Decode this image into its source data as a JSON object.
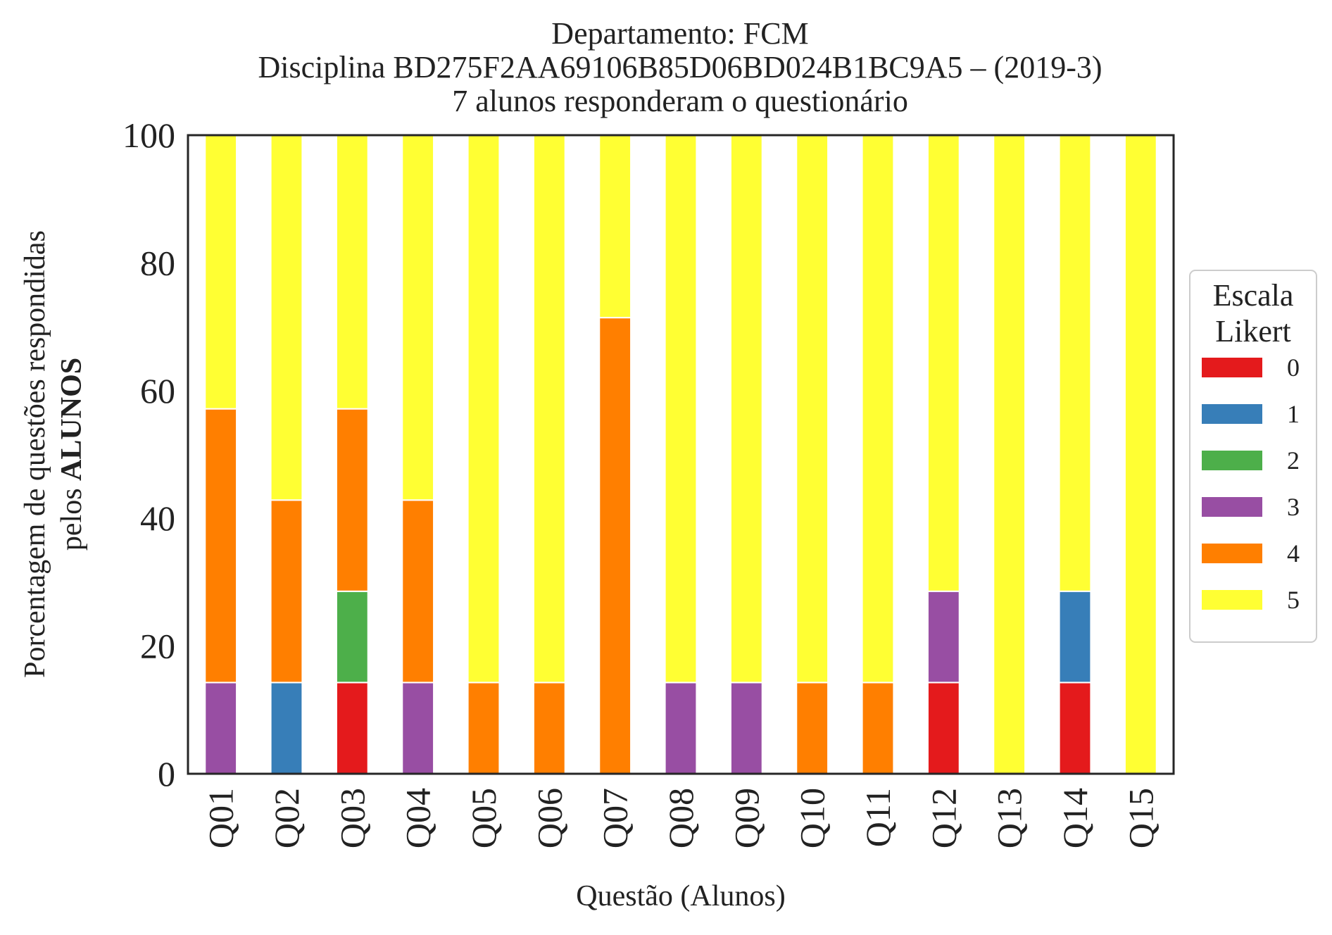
{
  "chart_data": {
    "type": "bar",
    "stacked": true,
    "title": [
      "Departamento: FCM",
      "Disciplina BD275F2AA69106B85D06BD024B1BC9A5 – (2019-3)",
      "7 alunos responderam o questionário"
    ],
    "xlabel": "Questão (Alunos)",
    "ylabel_line1": "Porcentagem de questões respondidas",
    "ylabel_line2_prefix": "pelos ",
    "ylabel_line2_bold": "ALUNOS",
    "ylim": [
      0,
      100
    ],
    "yticks": [
      "0",
      "20",
      "40",
      "60",
      "80",
      "100"
    ],
    "grid": false,
    "categories": [
      "Q01",
      "Q02",
      "Q03",
      "Q04",
      "Q05",
      "Q06",
      "Q07",
      "Q08",
      "Q09",
      "Q10",
      "Q11",
      "Q12",
      "Q13",
      "Q14",
      "Q15"
    ],
    "legend": {
      "title": [
        "Escala",
        "Likert"
      ],
      "placement": "center-right, outside plot"
    },
    "series": [
      {
        "name": "0",
        "color": "#e41a1c",
        "values": [
          0,
          0,
          14.29,
          0,
          0,
          0,
          0,
          0,
          0,
          0,
          0,
          14.29,
          0,
          14.29,
          0
        ]
      },
      {
        "name": "1",
        "color": "#377eb8",
        "values": [
          0,
          14.29,
          0,
          0,
          0,
          0,
          0,
          0,
          0,
          0,
          0,
          0,
          0,
          14.29,
          0
        ]
      },
      {
        "name": "2",
        "color": "#4daf4a",
        "values": [
          0,
          0,
          14.29,
          0,
          0,
          0,
          0,
          0,
          0,
          0,
          0,
          0,
          0,
          0,
          0
        ]
      },
      {
        "name": "3",
        "color": "#984ea3",
        "values": [
          14.29,
          0,
          0,
          14.29,
          0,
          0,
          0,
          14.29,
          14.29,
          0,
          0,
          14.29,
          0,
          0,
          0
        ]
      },
      {
        "name": "4",
        "color": "#ff7f00",
        "values": [
          42.86,
          28.57,
          28.57,
          28.57,
          14.29,
          14.29,
          71.43,
          0,
          0,
          14.29,
          14.29,
          0,
          0,
          0,
          0
        ]
      },
      {
        "name": "5",
        "color": "#ffff33",
        "values": [
          42.86,
          57.14,
          42.86,
          57.14,
          85.71,
          85.71,
          28.57,
          85.71,
          85.71,
          85.71,
          85.71,
          71.43,
          100,
          71.43,
          100
        ]
      }
    ]
  }
}
